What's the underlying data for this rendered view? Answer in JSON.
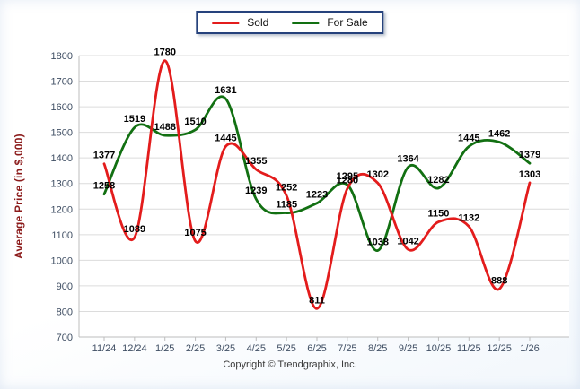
{
  "chart_data": {
    "type": "line",
    "categories": [
      "11/24",
      "12/24",
      "1/25",
      "2/25",
      "3/25",
      "4/25",
      "5/25",
      "6/25",
      "7/25",
      "8/25",
      "9/25",
      "10/25",
      "11/25",
      "12/25",
      "1/26"
    ],
    "series": [
      {
        "name": "Sold",
        "color": "#e31c1c",
        "values": [
          1377,
          1089,
          1780,
          1075,
          1445,
          1355,
          1252,
          811,
          1280,
          1302,
          1042,
          1150,
          1132,
          888,
          1303
        ]
      },
      {
        "name": "For Sale",
        "color": "#127012",
        "values": [
          1258,
          1519,
          1488,
          1510,
          1631,
          1239,
          1185,
          1223,
          1295,
          1038,
          1364,
          1282,
          1445,
          1462,
          1379
        ]
      }
    ],
    "title": "",
    "xlabel": "",
    "ylabel": "Average Price (in $,000)",
    "ylim": [
      700,
      1800
    ],
    "ytick_step": 100,
    "grid": "horizontal",
    "legend_position": "top-center",
    "data_labels": true
  },
  "footer": {
    "copyright": "Copyright © Trendgraphix, Inc."
  },
  "style": {
    "grid_color": "#dcdcdc",
    "axis_color": "#bdbdbd",
    "tick_label_color": "#3f4e63",
    "data_label_color": "#000000",
    "legend_border_color": "#26427c"
  }
}
